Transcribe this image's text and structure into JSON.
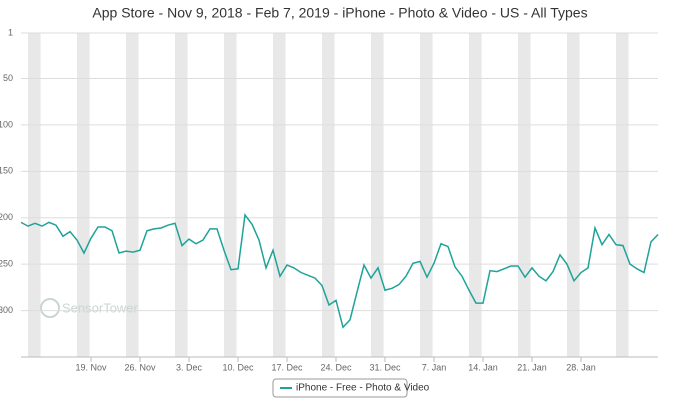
{
  "chart_data": {
    "type": "line",
    "title": "App Store - Nov 9, 2018 - Feb 7, 2019 - iPhone - Photo & Video - US - All Types",
    "watermark": "SensorTower",
    "x": [
      0,
      1,
      2,
      3,
      4,
      5,
      6,
      7,
      8,
      9,
      10,
      11,
      12,
      13,
      14,
      15,
      16,
      17,
      18,
      19,
      20,
      21,
      22,
      23,
      24,
      25,
      26,
      27,
      28,
      29,
      30,
      31,
      32,
      33,
      34,
      35,
      36,
      37,
      38,
      39,
      40,
      41,
      42,
      43,
      44,
      45,
      46,
      47,
      48,
      49,
      50,
      51,
      52,
      53,
      54,
      55,
      56,
      57,
      58,
      59,
      60,
      61,
      62,
      63,
      64,
      65,
      66,
      67,
      68,
      69,
      70,
      71,
      72,
      73,
      74,
      75,
      76,
      77,
      78,
      79,
      80,
      81,
      82,
      83,
      84,
      85,
      86,
      87,
      88,
      89,
      90,
      91
    ],
    "series": [
      {
        "name": "iPhone - Free - Photo & Video",
        "color": "#1fa398",
        "values": [
          205,
          209,
          206,
          209,
          205,
          208,
          220,
          215,
          224,
          238,
          222,
          210,
          210,
          214,
          238,
          236,
          237,
          235,
          214,
          212,
          211,
          208,
          206,
          230,
          223,
          228,
          224,
          212,
          212,
          235,
          256,
          255,
          197,
          207,
          224,
          254,
          235,
          263,
          251,
          254,
          259,
          262,
          265,
          273,
          294,
          289,
          318,
          310,
          280,
          251,
          265,
          254,
          278,
          276,
          272,
          263,
          249,
          247,
          264,
          249,
          228,
          231,
          253,
          263,
          278,
          292,
          292,
          257,
          258,
          255,
          252,
          252,
          264,
          254,
          263,
          268,
          258,
          240,
          250,
          268,
          259,
          254,
          211,
          229,
          218,
          229,
          230,
          250,
          255,
          259,
          226,
          218
        ]
      }
    ],
    "xlim": [
      0,
      91
    ],
    "xticks": [
      {
        "value": 10,
        "label": "19. Nov"
      },
      {
        "value": 17,
        "label": "26. Nov"
      },
      {
        "value": 24,
        "label": "3. Dec"
      },
      {
        "value": 31,
        "label": "10. Dec"
      },
      {
        "value": 38,
        "label": "17. Dec"
      },
      {
        "value": 45,
        "label": "24. Dec"
      },
      {
        "value": 52,
        "label": "31. Dec"
      },
      {
        "value": 59,
        "label": "7. Jan"
      },
      {
        "value": 66,
        "label": "14. Jan"
      },
      {
        "value": 73,
        "label": "21. Jan"
      },
      {
        "value": 80,
        "label": "28. Jan"
      }
    ],
    "ylim": [
      350,
      1
    ],
    "yticks": [
      1,
      50,
      100,
      150,
      200,
      250,
      300
    ],
    "grid": true
  }
}
